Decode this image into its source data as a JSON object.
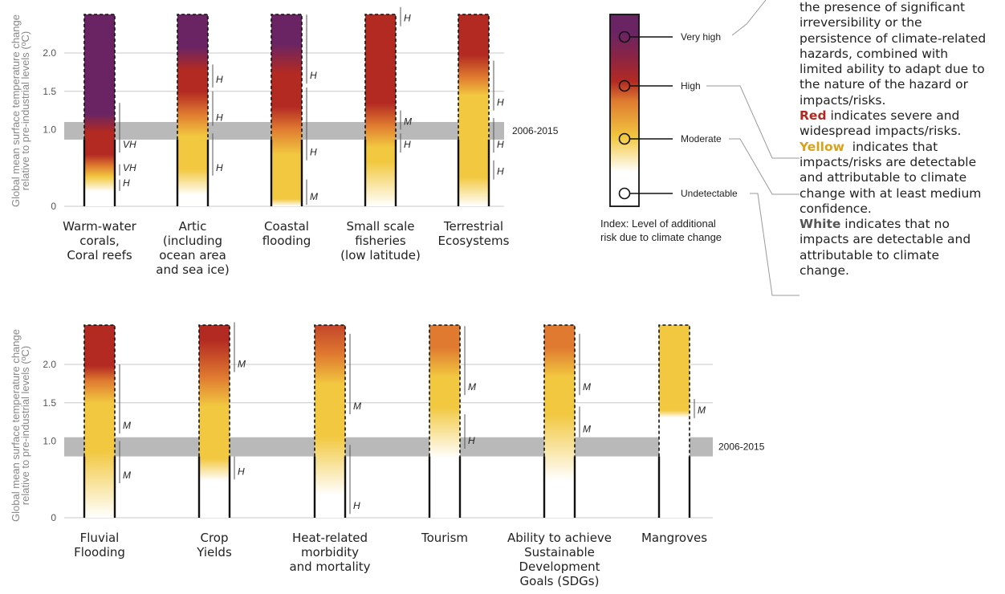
{
  "chart_data": [
    {
      "type": "bar",
      "ylabel": "Global mean surface temperature change relative to pre-industrial levels (ºC)",
      "y_ticks": [
        "0",
        "1.0",
        "1.5",
        "2.0"
      ],
      "reference_band": {
        "label": "2006-2015",
        "ymin": 0.87,
        "ymax": 1.1
      },
      "categories": [
        "Warm-water corals, Coral reefs",
        "Artic (including ocean area and sea ice)",
        "Coastal flooding",
        "Small scale fisheries (low latitude)",
        "Terrestrial Ecosystems"
      ],
      "category_lines": [
        [
          "Warm-water",
          "corals,",
          "Coral reefs"
        ],
        [
          "Artic",
          "(including",
          "ocean area",
          "and sea ice)"
        ],
        [
          "Coastal",
          "flooding"
        ],
        [
          "Small scale",
          "fisheries",
          "(low latitude)"
        ],
        [
          "Terrestrial",
          "Ecosystems"
        ]
      ],
      "series": [
        {
          "stops": [
            [
              0,
              "#ffffff"
            ],
            [
              0.2,
              "#ffffff"
            ],
            [
              0.4,
              "#f2c840"
            ],
            [
              0.55,
              "#df7a30"
            ],
            [
              0.7,
              "#b32a22"
            ],
            [
              1.0,
              "#b32a22"
            ],
            [
              1.25,
              "#6b2463"
            ],
            [
              2.6,
              "#6b2463"
            ]
          ],
          "confidence": [
            {
              "from": 0.2,
              "to": 0.35,
              "label": "H"
            },
            {
              "from": 0.4,
              "to": 0.55,
              "label": "VH"
            },
            {
              "from": 0.7,
              "to": 1.35,
              "label": "VH"
            }
          ]
        },
        {
          "stops": [
            [
              0,
              "#ffffff"
            ],
            [
              0.15,
              "#ffffff"
            ],
            [
              0.5,
              "#f2c840"
            ],
            [
              0.95,
              "#f2c840"
            ],
            [
              1.25,
              "#df7a30"
            ],
            [
              1.55,
              "#b32a22"
            ],
            [
              1.85,
              "#b32a22"
            ],
            [
              2.15,
              "#6b2463"
            ],
            [
              2.6,
              "#6b2463"
            ]
          ],
          "confidence": [
            {
              "from": 0.4,
              "to": 0.95,
              "label": "H"
            },
            {
              "from": 1.05,
              "to": 1.5,
              "label": "H"
            },
            {
              "from": 1.55,
              "to": 1.85,
              "label": "H"
            }
          ]
        },
        {
          "stops": [
            [
              0,
              "#ffffff"
            ],
            [
              0.1,
              "#f2c840"
            ],
            [
              0.7,
              "#f2c840"
            ],
            [
              1.05,
              "#df7a30"
            ],
            [
              1.35,
              "#b32a22"
            ],
            [
              1.8,
              "#b32a22"
            ],
            [
              2.2,
              "#6b2463"
            ],
            [
              2.6,
              "#6b2463"
            ]
          ],
          "confidence": [
            {
              "from": 0.02,
              "to": 0.35,
              "label": "M"
            },
            {
              "from": 0.6,
              "to": 1.55,
              "label": "H"
            },
            {
              "from": 1.6,
              "to": 2.5,
              "label": "H"
            }
          ]
        },
        {
          "stops": [
            [
              0,
              "#ffffff"
            ],
            [
              0.6,
              "#f2c840"
            ],
            [
              0.8,
              "#f2c840"
            ],
            [
              1.1,
              "#df7a30"
            ],
            [
              1.4,
              "#b32a22"
            ],
            [
              2.6,
              "#b32a22"
            ]
          ],
          "confidence": [
            {
              "from": 0.7,
              "to": 0.95,
              "label": "H"
            },
            {
              "from": 1.0,
              "to": 1.25,
              "label": "M"
            },
            {
              "from": 2.35,
              "to": 2.6,
              "label": "H"
            }
          ]
        },
        {
          "stops": [
            [
              0,
              "#ffffff"
            ],
            [
              0.4,
              "#f2c840"
            ],
            [
              1.5,
              "#f2c840"
            ],
            [
              1.75,
              "#df7a30"
            ],
            [
              2.05,
              "#b32a22"
            ],
            [
              2.6,
              "#b32a22"
            ]
          ],
          "confidence": [
            {
              "from": 0.35,
              "to": 0.6,
              "label": "H"
            },
            {
              "from": 0.7,
              "to": 1.15,
              "label": "H"
            },
            {
              "from": 1.25,
              "to": 1.9,
              "label": "H"
            }
          ]
        }
      ]
    },
    {
      "type": "bar",
      "ylabel": "Global mean surface temperature change relative to pre-industrial levels (ºC)",
      "y_ticks": [
        "0",
        "1.0",
        "1.5",
        "2.0"
      ],
      "reference_band": {
        "label": "2006-2015",
        "ymin": 0.8,
        "ymax": 1.05
      },
      "categories": [
        "Fluvial Flooding",
        "Crop Yields",
        "Heat-related morbidity and mortality",
        "Tourism",
        "Ability to achieve Sustainable Development Goals (SDGs)",
        "Mangroves"
      ],
      "category_lines": [
        [
          "Fluvial",
          "Flooding"
        ],
        [
          "Crop",
          "Yields"
        ],
        [
          "Heat-related",
          "morbidity",
          "and mortality"
        ],
        [
          "Tourism"
        ],
        [
          "Ability to achieve",
          "Sustainable",
          "Development",
          "Goals (SDGs)"
        ],
        [
          "Mangroves"
        ]
      ],
      "series": [
        {
          "stops": [
            [
              0,
              "#ffffff"
            ],
            [
              0.9,
              "#f2c840"
            ],
            [
              1.55,
              "#f2c840"
            ],
            [
              1.85,
              "#df7a30"
            ],
            [
              2.05,
              "#b32a22"
            ],
            [
              2.6,
              "#b32a22"
            ]
          ],
          "confidence": [
            {
              "from": 0.45,
              "to": 1.0,
              "label": "M"
            },
            {
              "from": 1.1,
              "to": 2.0,
              "label": "M"
            }
          ]
        },
        {
          "stops": [
            [
              0,
              "#ffffff"
            ],
            [
              0.5,
              "#ffffff"
            ],
            [
              0.8,
              "#f2c840"
            ],
            [
              1.5,
              "#f2c840"
            ],
            [
              1.9,
              "#df7a30"
            ],
            [
              2.4,
              "#b32a22"
            ],
            [
              2.6,
              "#b32a22"
            ]
          ],
          "confidence": [
            {
              "from": 0.5,
              "to": 0.8,
              "label": "H"
            },
            {
              "from": 1.9,
              "to": 2.55,
              "label": "M"
            }
          ]
        },
        {
          "stops": [
            [
              0,
              "#ffffff"
            ],
            [
              0.3,
              "#ffffff"
            ],
            [
              1.1,
              "#f2c840"
            ],
            [
              1.8,
              "#f2c840"
            ],
            [
              2.2,
              "#df7a30"
            ],
            [
              2.6,
              "#c4462a"
            ]
          ],
          "confidence": [
            {
              "from": 0.05,
              "to": 0.95,
              "label": "H"
            },
            {
              "from": 1.35,
              "to": 2.4,
              "label": "M"
            }
          ]
        },
        {
          "stops": [
            [
              0,
              "#ffffff"
            ],
            [
              0.8,
              "#ffffff"
            ],
            [
              1.5,
              "#f2c840"
            ],
            [
              1.9,
              "#f2c840"
            ],
            [
              2.3,
              "#df7a30"
            ],
            [
              2.6,
              "#df7a30"
            ]
          ],
          "confidence": [
            {
              "from": 0.9,
              "to": 1.35,
              "label": "H"
            },
            {
              "from": 1.6,
              "to": 2.5,
              "label": "M"
            }
          ]
        },
        {
          "stops": [
            [
              0,
              "#ffffff"
            ],
            [
              0.5,
              "#ffffff"
            ],
            [
              1.4,
              "#f2c840"
            ],
            [
              1.9,
              "#f2c840"
            ],
            [
              2.3,
              "#df7a30"
            ],
            [
              2.6,
              "#df7a30"
            ]
          ],
          "confidence": [
            {
              "from": 1.05,
              "to": 1.45,
              "label": "M"
            },
            {
              "from": 1.6,
              "to": 2.4,
              "label": "M"
            }
          ]
        },
        {
          "stops": [
            [
              0,
              "#ffffff"
            ],
            [
              1.35,
              "#ffffff"
            ],
            [
              1.45,
              "#f2c840"
            ],
            [
              2.6,
              "#f2c840"
            ]
          ],
          "confidence": [
            {
              "from": 1.3,
              "to": 1.55,
              "label": "M"
            }
          ]
        }
      ]
    }
  ],
  "legend": {
    "index_label_lines": [
      "Index: Level of additional",
      "risk due to climate change"
    ],
    "levels": [
      {
        "label": "Very high",
        "level": 4
      },
      {
        "label": "High",
        "level": 3
      },
      {
        "label": "Moderate",
        "level": 2
      },
      {
        "label": "Undetectable",
        "level": 1
      }
    ],
    "colors": {
      "very_high": "#6b2463",
      "high": "#b32a22",
      "moderate": "#f2c840",
      "undetectable": "#ffffff",
      "band": "#b9b9b9"
    }
  },
  "legend_text": {
    "purple_cont_1": "the presence of significant",
    "purple_cont_2": "irreversibility or the",
    "purple_cont_3": "persistence of climate-related",
    "purple_cont_4": "hazards, combined with",
    "purple_cont_5": "limited ability to adapt due to",
    "purple_cont_6": "the nature of the hazard or",
    "purple_cont_7": "impacts/risks.",
    "red_word": "Red",
    "red_rest": " indicates severe and",
    "red_line2": "widespread impacts/risks.",
    "yellow_word": "Yellow",
    "yellow_rest": "  indicates that",
    "yellow_line2": "impacts/risks are detectable",
    "yellow_line3": "and attributable to climate",
    "yellow_line4": "change with at least medium",
    "yellow_line5": "confidence.",
    "white_word": "White",
    "white_rest": " indicates that no",
    "white_line2": "impacts are detectable and",
    "white_line3": "attributable to climate",
    "white_line4": "change."
  }
}
